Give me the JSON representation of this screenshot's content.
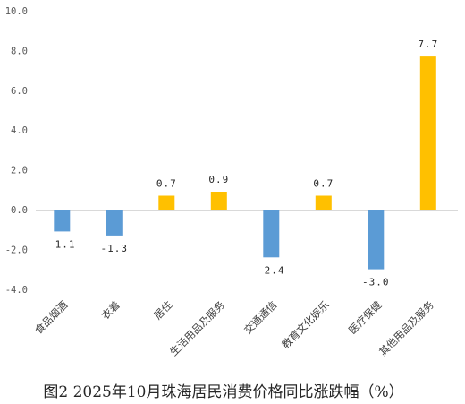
{
  "chart_data": {
    "type": "bar",
    "title": "图2 2025年10月珠海居民消费价格同比涨跌幅（%）",
    "xlabel": "",
    "ylabel": "",
    "categories": [
      "食品烟酒",
      "衣着",
      "居住",
      "生活用品及服务",
      "交通通信",
      "教育文化娱乐",
      "医疗保健",
      "其他用品及服务"
    ],
    "values": [
      -1.1,
      -1.3,
      0.7,
      0.9,
      -2.4,
      0.7,
      -3.0,
      7.7
    ],
    "value_labels": [
      "-1.1",
      "-1.3",
      "0.7",
      "0.9",
      "-2.4",
      "0.7",
      "-3.0",
      "7.7"
    ],
    "ylim": [
      -4,
      10
    ],
    "yticks": [
      "10.0",
      "8.0",
      "6.0",
      "4.0",
      "2.0",
      "0.0",
      "-2.0",
      "-4.0"
    ],
    "grid": false,
    "legend": "none",
    "colors": {
      "positive": "#FFC000",
      "negative": "#5B9BD5",
      "baseline": "#D9D9D9"
    }
  }
}
